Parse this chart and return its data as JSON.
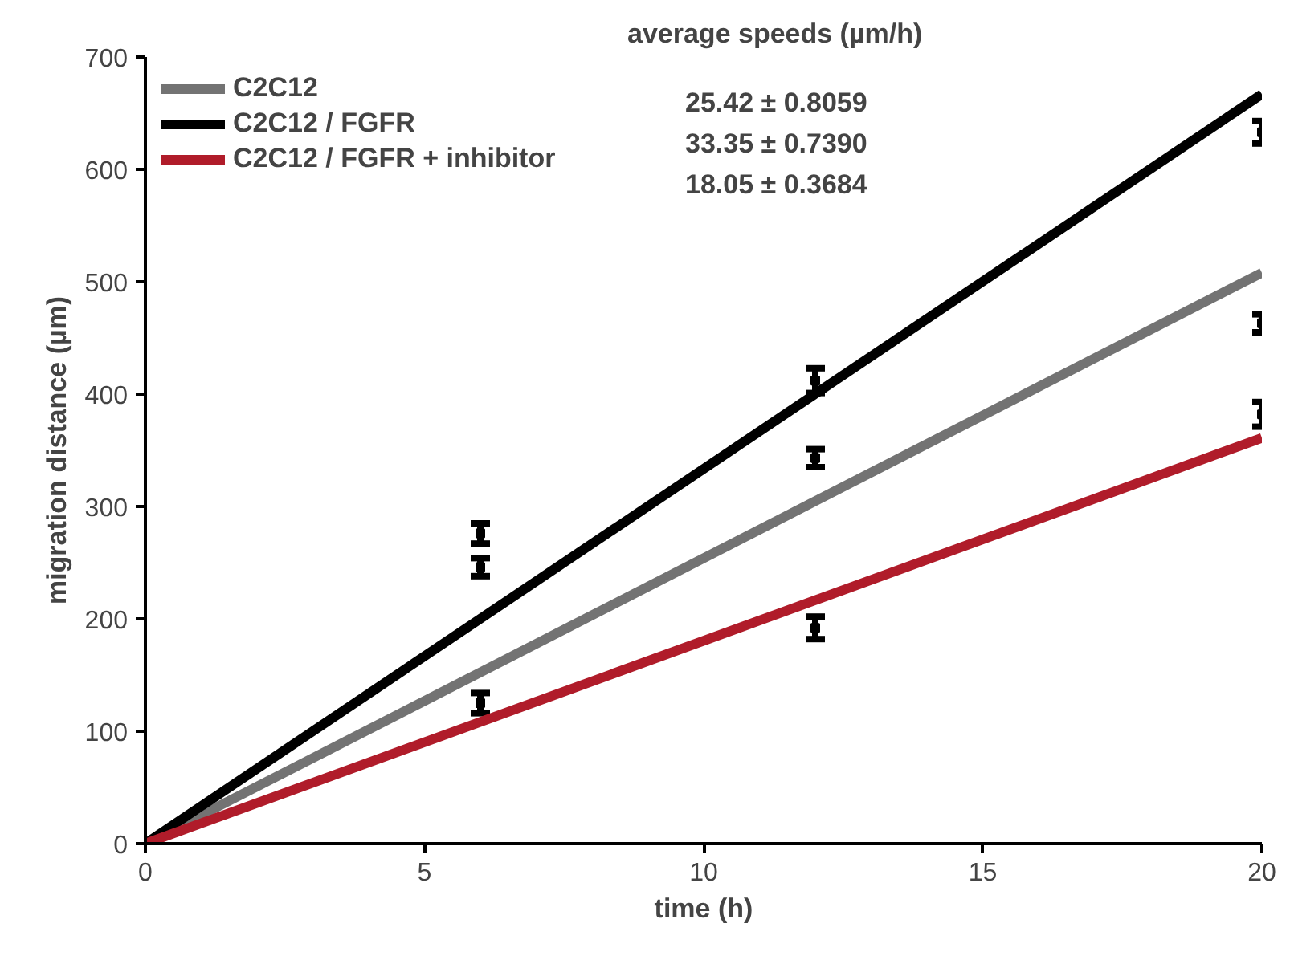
{
  "chart_data": {
    "type": "line",
    "xlabel": "time (h)",
    "ylabel": "migration distance (µm)",
    "xlim": [
      0,
      20
    ],
    "xticks": [
      0,
      5,
      10,
      15,
      20
    ],
    "ylim": [
      0,
      700
    ],
    "yticks": [
      0,
      100,
      200,
      300,
      400,
      500,
      600,
      700
    ],
    "grid": false,
    "legend": "top left",
    "line_style": "solid",
    "annotations": [
      "average speeds (µm/h)",
      "25.42 ± 0.8059",
      "33.35 ± 0.7390",
      "18.05 ± 0.3684"
    ],
    "series": [
      {
        "name": "C2C12",
        "color": "#737373",
        "x": [
          0,
          20
        ],
        "values": [
          0,
          508
        ]
      },
      {
        "name": "C2C12 / FGFR",
        "color": "#000000",
        "x": [
          0,
          20
        ],
        "values": [
          0,
          667
        ]
      },
      {
        "name": "C2C12 / FGFR + inhibitor",
        "color": "#b01c2a",
        "x": [
          0,
          20
        ],
        "values": [
          0,
          361
        ]
      },
      {
        "type": "scatter",
        "marker": "square",
        "color": "#000000",
        "x": [
          6,
          6,
          6,
          12,
          12,
          12,
          20,
          20,
          20
        ],
        "values": [
          276,
          246,
          125,
          412,
          343,
          192,
          633,
          463,
          382
        ],
        "errors": [
          9,
          8,
          9,
          11,
          8,
          10,
          10,
          8,
          11
        ]
      }
    ]
  }
}
